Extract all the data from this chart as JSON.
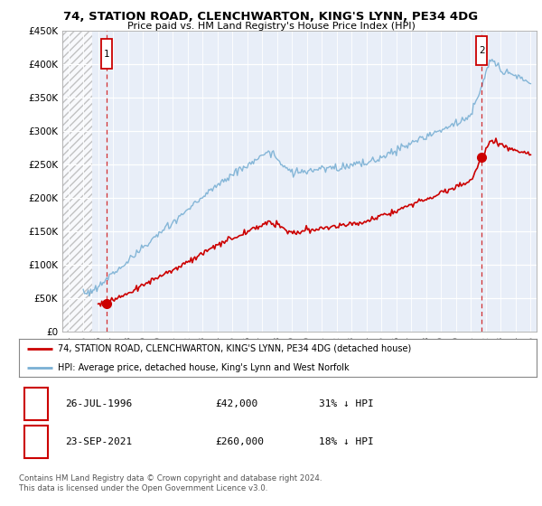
{
  "title": "74, STATION ROAD, CLENCHWARTON, KING'S LYNN, PE34 4DG",
  "subtitle": "Price paid vs. HM Land Registry's House Price Index (HPI)",
  "ylabel_ticks": [
    "£0",
    "£50K",
    "£100K",
    "£150K",
    "£200K",
    "£250K",
    "£300K",
    "£350K",
    "£400K",
    "£450K"
  ],
  "ytick_values": [
    0,
    50000,
    100000,
    150000,
    200000,
    250000,
    300000,
    350000,
    400000,
    450000
  ],
  "ylim": [
    0,
    450000
  ],
  "xlim_start": 1993.6,
  "xlim_end": 2025.4,
  "hatch_end": 1995.6,
  "sale1_x": 1996.56,
  "sale1_y": 42000,
  "sale2_x": 2021.72,
  "sale2_y": 260000,
  "sale1_label": "1",
  "sale2_label": "2",
  "sale1_date": "26-JUL-1996",
  "sale1_price": "£42,000",
  "sale1_hpi": "31% ↓ HPI",
  "sale2_date": "23-SEP-2021",
  "sale2_price": "£260,000",
  "sale2_hpi": "18% ↓ HPI",
  "red_line_color": "#cc0000",
  "blue_line_color": "#7ab0d4",
  "hatch_color": "#cccccc",
  "grid_color": "#d0d8e8",
  "legend_label1": "74, STATION ROAD, CLENCHWARTON, KING'S LYNN, PE34 4DG (detached house)",
  "legend_label2": "HPI: Average price, detached house, King's Lynn and West Norfolk",
  "footer": "Contains HM Land Registry data © Crown copyright and database right 2024.\nThis data is licensed under the Open Government Licence v3.0.",
  "background_color": "#ffffff",
  "chart_bg": "#e8eef8"
}
